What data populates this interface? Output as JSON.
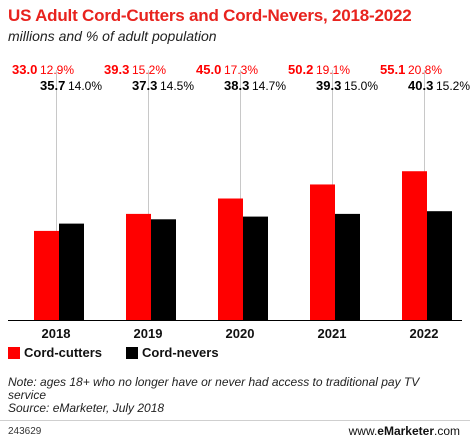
{
  "title": "US Adult Cord-Cutters and Cord-Nevers, 2018-2022",
  "subtitle": "millions and % of adult population",
  "chart_data": {
    "type": "bar",
    "categories": [
      "2018",
      "2019",
      "2020",
      "2021",
      "2022"
    ],
    "series": [
      {
        "name": "Cord-cutters",
        "color": "#ff0000",
        "values": [
          33.0,
          39.3,
          45.0,
          50.2,
          55.1
        ],
        "value_labels": [
          "33.0",
          "39.3",
          "45.0",
          "50.2",
          "55.1"
        ],
        "pct_labels": [
          "12.9%",
          "15.2%",
          "17.3%",
          "19.1%",
          "20.8%"
        ]
      },
      {
        "name": "Cord-nevers",
        "color": "#000000",
        "values": [
          35.7,
          37.3,
          38.3,
          39.3,
          40.3
        ],
        "value_labels": [
          "35.7",
          "37.3",
          "38.3",
          "39.3",
          "40.3"
        ],
        "pct_labels": [
          "14.0%",
          "14.5%",
          "14.7%",
          "15.0%",
          "15.2%"
        ]
      }
    ],
    "ylim": [
      0,
      100
    ],
    "grid": false,
    "legend": "bottom-left"
  },
  "note": "Note: ages 18+ who no longer have or never had access to traditional pay TV service",
  "source": "Source: eMarketer, July 2018",
  "chart_id": "243629",
  "brand": {
    "prefix": "www.",
    "name": "eMarketer",
    "suffix": ".com"
  }
}
